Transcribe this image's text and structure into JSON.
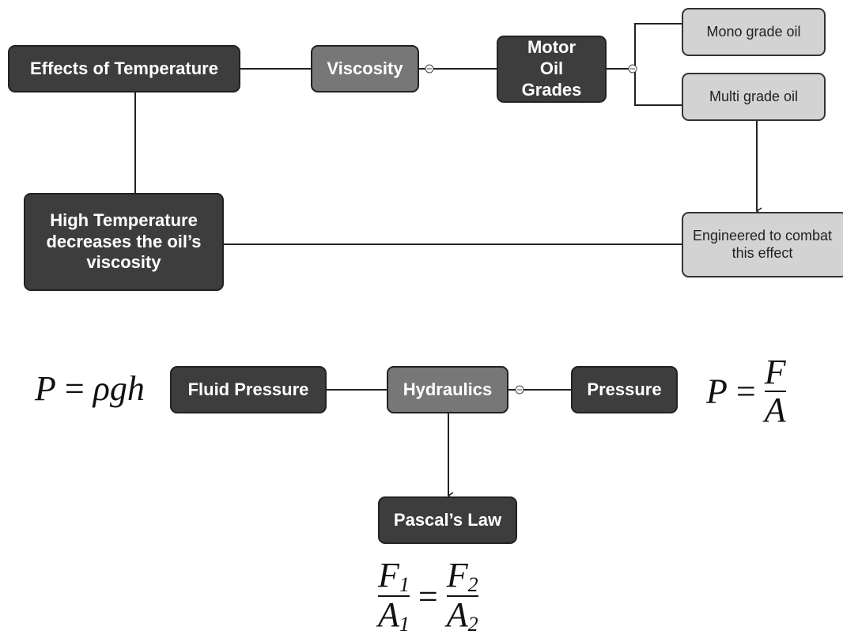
{
  "nodes": [
    {
      "label": "Effects of Temperature"
    },
    {
      "label": "Viscosity"
    },
    {
      "label": "Motor Oil Grades"
    },
    {
      "label": "Mono grade oil"
    },
    {
      "label": "Multi grade oil"
    },
    {
      "label": "High Temperature decreases the oil’s viscosity"
    },
    {
      "label": "Engineered to combat this effect"
    },
    {
      "label": "Fluid Pressure"
    },
    {
      "label": "Hydraulics"
    },
    {
      "label": "Pressure"
    },
    {
      "label": "Pascal’s Law"
    }
  ],
  "formulas": {
    "fluid_pressure": {
      "lhs": "P",
      "eq": "=",
      "rhs": "ρgh"
    },
    "pressure": {
      "lhs": "P",
      "eq": "=",
      "num": "F",
      "den": "A"
    },
    "pascal": {
      "left": {
        "num": "F",
        "num_sub": "1",
        "den": "A",
        "den_sub": "1"
      },
      "eq": "=",
      "right": {
        "num": "F",
        "num_sub": "2",
        "den": "A",
        "den_sub": "2"
      }
    }
  }
}
